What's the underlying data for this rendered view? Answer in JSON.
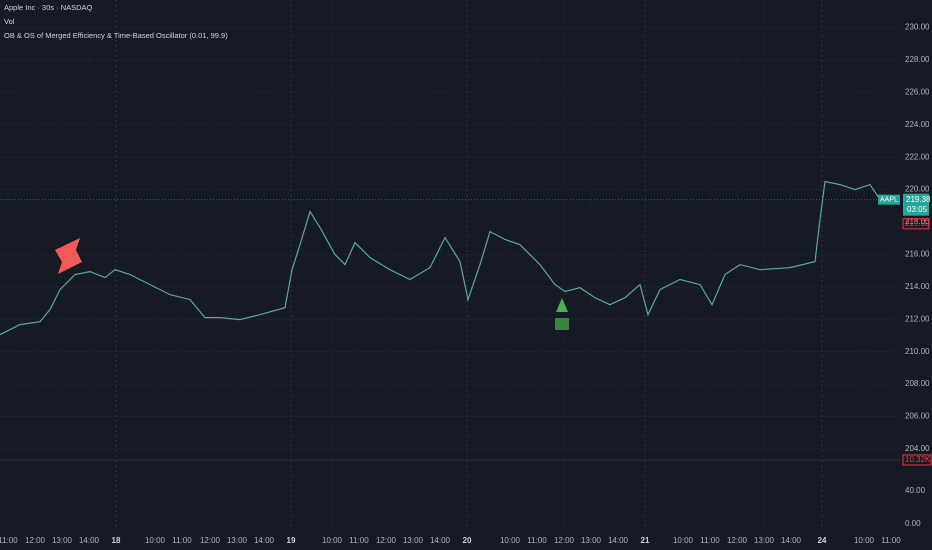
{
  "header": {
    "symbol": "Apple Inc · 30s · NASDAQ",
    "volume": "Vol",
    "indicator": "OB & OS of Merged Efficiency & Time-Based Oscillator (0.01, 99.9)"
  },
  "chart_data": [
    {
      "type": "line",
      "ticker": "AAPL",
      "last_price": 219.38,
      "countdown": "03:05",
      "reference_price": {
        "value": 219,
        "label": "219.00"
      },
      "volume_last": "10.32K",
      "x": [
        0,
        20,
        40,
        50,
        60,
        75,
        90,
        105,
        115,
        130,
        150,
        170,
        190,
        205,
        220,
        240,
        260,
        285,
        292,
        300,
        310,
        320,
        335,
        345,
        355,
        370,
        390,
        410,
        430,
        445,
        460,
        468,
        480,
        490,
        505,
        520,
        540,
        555,
        565,
        580,
        595,
        610,
        625,
        640,
        648,
        660,
        680,
        700,
        712,
        725,
        740,
        760,
        790,
        815,
        820,
        825,
        840,
        855,
        870,
        880,
        895
      ],
      "series": [
        {
          "name": "AAPL",
          "color": "#5aa89e",
          "values": [
            211.05,
            211.67,
            211.85,
            212.6,
            213.83,
            214.76,
            214.94,
            214.57,
            215.06,
            214.76,
            214.14,
            213.52,
            213.21,
            212.1,
            212.1,
            211.98,
            212.28,
            212.72,
            215.06,
            216.6,
            218.64,
            217.66,
            215.99,
            215.37,
            216.73,
            215.8,
            215.06,
            214.45,
            215.19,
            217.04,
            215.56,
            213.21,
            215.37,
            217.41,
            216.92,
            216.6,
            215.37,
            214.14,
            213.71,
            213.95,
            213.33,
            212.9,
            213.33,
            214.14,
            212.29,
            213.83,
            214.45,
            214.14,
            212.9,
            214.76,
            215.37,
            215.06,
            215.19,
            215.56,
            218.15,
            220.5,
            220.31,
            220.0,
            220.31,
            219.38,
            219.38
          ]
        }
      ],
      "xlim": [
        0,
        900
      ],
      "xticks": [
        {
          "value": 8,
          "label": "11:00"
        },
        {
          "value": 35,
          "label": "12:00"
        },
        {
          "value": 62,
          "label": "13:00"
        },
        {
          "value": 89,
          "label": "14:00"
        },
        {
          "value": 116,
          "label": "18"
        },
        {
          "value": 155,
          "label": "10:00"
        },
        {
          "value": 182,
          "label": "11:00"
        },
        {
          "value": 210,
          "label": "12:00"
        },
        {
          "value": 237,
          "label": "13:00"
        },
        {
          "value": 264,
          "label": "14:00"
        },
        {
          "value": 291,
          "label": "19"
        },
        {
          "value": 332,
          "label": "10:00"
        },
        {
          "value": 359,
          "label": "11:00"
        },
        {
          "value": 386,
          "label": "12:00"
        },
        {
          "value": 413,
          "label": "13:00"
        },
        {
          "value": 440,
          "label": "14:00"
        },
        {
          "value": 467,
          "label": "20"
        },
        {
          "value": 510,
          "label": "10:00"
        },
        {
          "value": 537,
          "label": "11:00"
        },
        {
          "value": 564,
          "label": "12:00"
        },
        {
          "value": 591,
          "label": "13:00"
        },
        {
          "value": 618,
          "label": "14:00"
        },
        {
          "value": 645,
          "label": "21"
        },
        {
          "value": 683,
          "label": "10:00"
        },
        {
          "value": 710,
          "label": "11:00"
        },
        {
          "value": 737,
          "label": "12:00"
        },
        {
          "value": 764,
          "label": "13:00"
        },
        {
          "value": 791,
          "label": "14:00"
        },
        {
          "value": 822,
          "label": "24"
        },
        {
          "value": 864,
          "label": "10:00"
        },
        {
          "value": 891,
          "label": "11:00"
        }
      ],
      "ylim": [
        203.5,
        231.7
      ],
      "yticks": [
        {
          "value": 204,
          "label": "204.00"
        },
        {
          "value": 206,
          "label": "206.00"
        },
        {
          "value": 208,
          "label": "208.00"
        },
        {
          "value": 210,
          "label": "210.00"
        },
        {
          "value": 212,
          "label": "212.00"
        },
        {
          "value": 214,
          "label": "214.00"
        },
        {
          "value": 216,
          "label": "216.00"
        },
        {
          "value": 218,
          "label": "218.00"
        },
        {
          "value": 220,
          "label": "220.00"
        },
        {
          "value": 222,
          "label": "222.00"
        },
        {
          "value": 224,
          "label": "224.00"
        },
        {
          "value": 226,
          "label": "226.00"
        },
        {
          "value": 228,
          "label": "228.00"
        },
        {
          "value": 230,
          "label": "230.00"
        }
      ],
      "grid": true
    },
    {
      "type": "line",
      "series": [],
      "ylim": [
        0,
        75
      ],
      "yticks": [
        {
          "value": 0,
          "label": "0.00"
        },
        {
          "value": 40,
          "label": "40.00"
        }
      ]
    }
  ]
}
